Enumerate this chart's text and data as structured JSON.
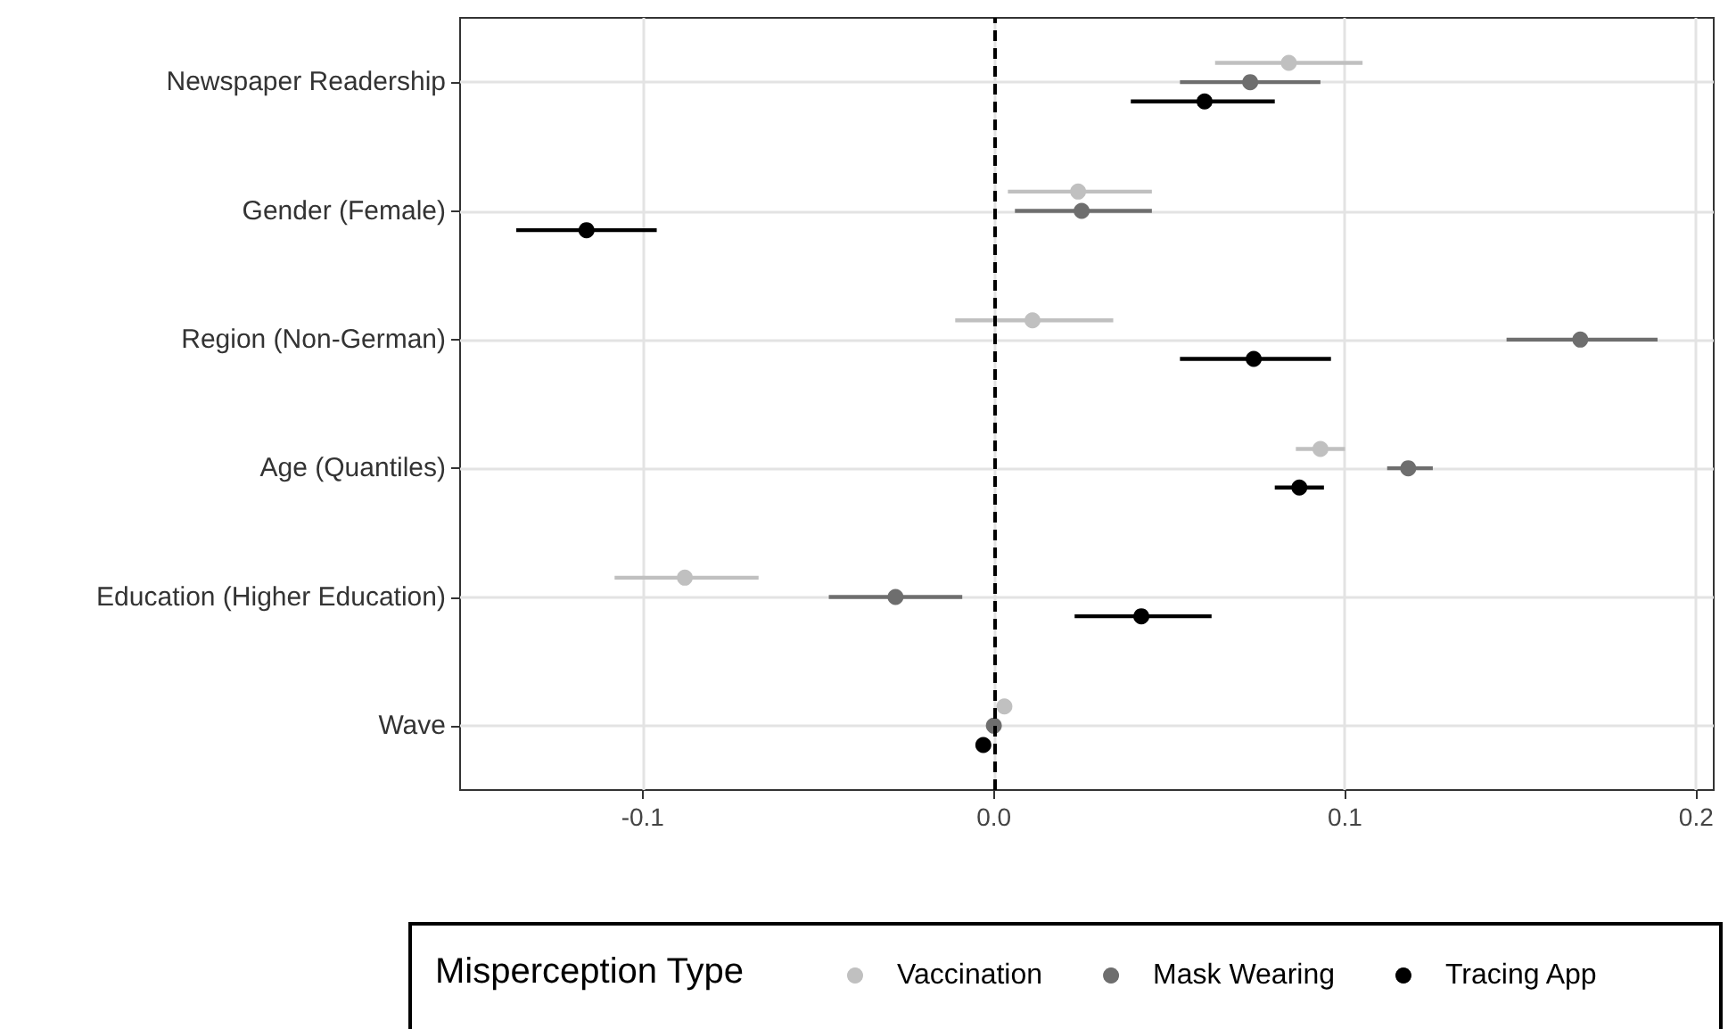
{
  "chart_data": {
    "type": "scatter",
    "orientation": "horizontal",
    "legend_title": "Misperception Type",
    "categories": [
      "Newspaper Readership",
      "Gender (Female)",
      "Region (Non-German)",
      "Age (Quantiles)",
      "Education (Higher Education)",
      "Wave"
    ],
    "series": [
      {
        "name": "Vaccination",
        "color": "#c0c0c0",
        "values": [
          0.084,
          0.024,
          0.011,
          0.093,
          -0.088,
          0.003
        ],
        "errors": [
          [
            0.063,
            0.105
          ],
          [
            0.004,
            0.045
          ],
          [
            -0.011,
            0.034
          ],
          [
            0.086,
            0.1
          ],
          [
            -0.108,
            -0.067
          ],
          null
        ]
      },
      {
        "name": "Mask Wearing",
        "color": "#6e6e6e",
        "values": [
          0.073,
          0.025,
          0.167,
          0.118,
          -0.028,
          0.0
        ],
        "errors": [
          [
            0.053,
            0.093
          ],
          [
            0.006,
            0.045
          ],
          [
            0.146,
            0.189
          ],
          [
            0.112,
            0.125
          ],
          [
            -0.047,
            -0.009
          ],
          null
        ]
      },
      {
        "name": "Tracing App",
        "color": "#000000",
        "values": [
          0.06,
          -0.116,
          0.074,
          0.087,
          0.042,
          -0.003
        ],
        "errors": [
          [
            0.039,
            0.08
          ],
          [
            -0.136,
            -0.096
          ],
          [
            0.053,
            0.096
          ],
          [
            0.08,
            0.094
          ],
          [
            0.023,
            0.062
          ],
          null
        ]
      }
    ],
    "xlim": [
      -0.152,
      0.205
    ],
    "xticks": [
      {
        "value": -0.1,
        "label": "-0.1"
      },
      {
        "value": 0,
        "label": "0.0"
      },
      {
        "value": 0.1,
        "label": "0.1"
      },
      {
        "value": 0.2,
        "label": "0.2"
      }
    ],
    "ref_lines": [
      {
        "axis": "x",
        "value": 0,
        "line_style": "dashed",
        "color": "#000000"
      }
    ],
    "grid": true,
    "legend": "bottom",
    "marker": "circle"
  }
}
